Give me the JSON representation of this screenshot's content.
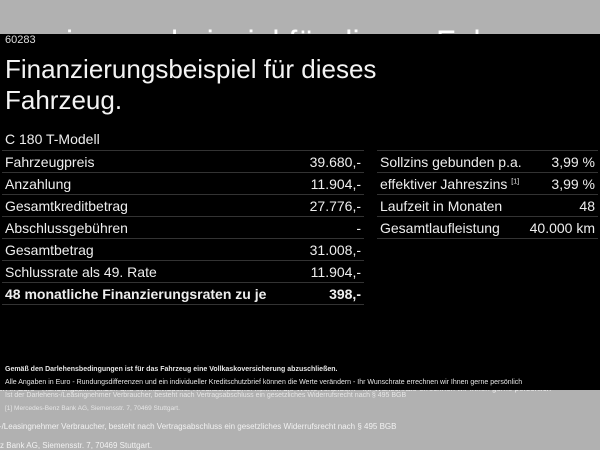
{
  "zip": "60283",
  "title": "Finanzierungsbeispiel für dieses Fahrzeug.",
  "model": "C 180 T-Modell",
  "left_rows": [
    {
      "label": "Fahrzeugpreis",
      "value": "39.680,-"
    },
    {
      "label": "Anzahlung",
      "value": "11.904,-"
    },
    {
      "label": "Gesamtkreditbetrag",
      "value": "27.776,-"
    },
    {
      "label": "Abschlussgebühren",
      "value": "-"
    },
    {
      "label": "Gesamtbetrag",
      "value": "31.008,-"
    },
    {
      "label": "Schlussrate als 49. Rate",
      "value": "11.904,-"
    },
    {
      "label": "48 monatliche Finanzierungsraten zu je",
      "value": "398,-"
    }
  ],
  "right_rows": [
    {
      "label": "Sollzins gebunden p.a.",
      "value": "3,99 %"
    },
    {
      "label": "effektiver Jahreszins",
      "sup": "[1]",
      "value": "3,99 %"
    },
    {
      "label": "Laufzeit in Monaten",
      "value": "48"
    },
    {
      "label": "Gesamtlaufleistung",
      "value": "40.000 km"
    }
  ],
  "footer": {
    "insurance": "Gemäß den Darlehensbedingungen ist für das Fahrzeug eine Vollkaskoversicherung abzuschließen.",
    "euro": "Alle Angaben in Euro - Rundungsdifferenzen und ein individueller Kreditschutzbrief können die Werte verändern - Ihr Wunschrate errechnen wir Ihnen gerne persönlich",
    "widerruf": "Ist der Darlehens-/Leasingnehmer Verbraucher, besteht nach Vertragsabschluss ein gesetzliches Widerrufsrecht nach § 495 BGB",
    "bank_ref": "[1]",
    "bank": "Mercedes-Benz Bank AG, Siemensstr. 7, 70469 Stuttgart."
  }
}
